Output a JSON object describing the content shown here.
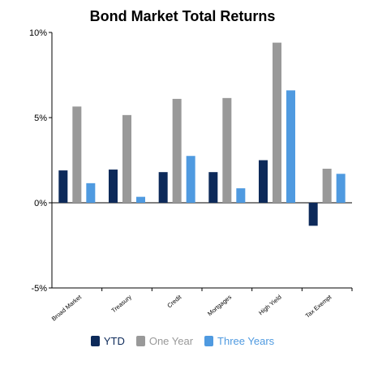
{
  "chart_data": {
    "type": "bar",
    "title": "Bond Market Total Returns",
    "xlabel": "",
    "ylabel": "",
    "ylim": [
      -5,
      10
    ],
    "yticks": [
      {
        "value": 10,
        "label": "10%"
      },
      {
        "value": 5,
        "label": "5%"
      },
      {
        "value": 0,
        "label": "0%"
      },
      {
        "value": -5,
        "label": "-5%"
      }
    ],
    "grid": false,
    "legend_position": "bottom",
    "categories": [
      "Broad Market",
      "Treasury",
      "Credit",
      "Mortgages",
      "High Yield",
      "Tax Exempt"
    ],
    "series": [
      {
        "name": "YTD",
        "color": "#0d2a5a",
        "values": [
          1.9,
          1.95,
          1.8,
          1.8,
          2.5,
          -1.35
        ]
      },
      {
        "name": "One Year",
        "color": "#999999",
        "values": [
          5.65,
          5.15,
          6.1,
          6.15,
          9.4,
          2.0
        ]
      },
      {
        "name": "Three Years",
        "color": "#4f9ae0",
        "values": [
          1.15,
          0.35,
          2.75,
          0.85,
          6.6,
          1.7
        ]
      }
    ]
  }
}
